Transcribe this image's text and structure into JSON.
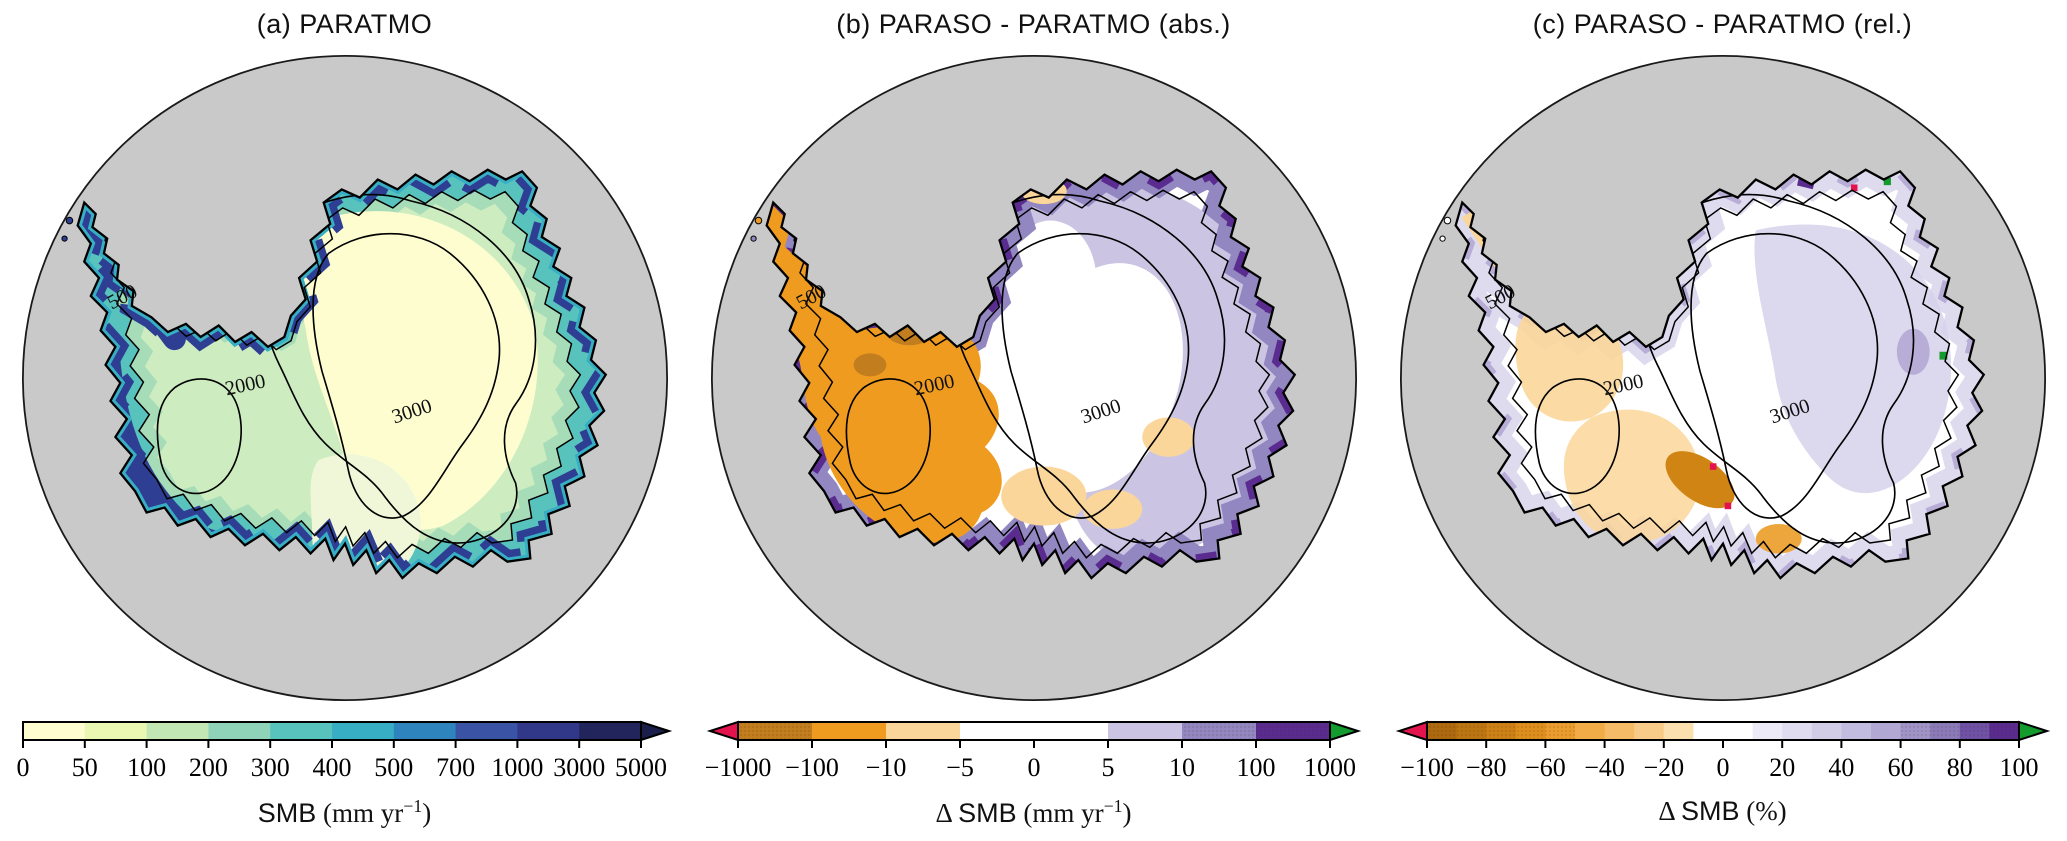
{
  "figure": {
    "background": "#ffffff",
    "ocean_color": "#c9c9c9",
    "coastline_color": "#000000"
  },
  "map": {
    "contour_labels": [
      "500",
      "2000",
      "3000"
    ],
    "contour_levels_m": [
      500,
      2000,
      3000
    ]
  },
  "panels": [
    {
      "id": "a",
      "title": "(a) PARATMO",
      "colorbar": {
        "orientation": "horizontal",
        "segments": [
          "#fdfdd0",
          "#e9f7b2",
          "#c2e7b4",
          "#8fd4b9",
          "#58c3bd",
          "#38aec5",
          "#2e84bc",
          "#3a53a4",
          "#31388a",
          "#22255c"
        ],
        "hatched_segments": [],
        "ticks": [
          "0",
          "50",
          "100",
          "200",
          "300",
          "400",
          "500",
          "700",
          "1000",
          "3000",
          "5000"
        ],
        "left_arrow": null,
        "right_arrow": "#1b1d4a",
        "label_runs": [
          {
            "t": "SMB",
            "f": "sans"
          },
          {
            "t": " (mm yr",
            "f": "serif"
          },
          {
            "t": "−1",
            "f": "serif",
            "sup": true
          },
          {
            "t": ")",
            "f": "serif"
          }
        ]
      }
    },
    {
      "id": "b",
      "title": "(b) PARASO - PARATMO (abs.)",
      "colorbar": {
        "orientation": "horizontal",
        "segments": [
          "#c17d1e",
          "#ef9b20",
          "#fbd69a",
          "#ffffff",
          "#ffffff",
          "#cbc5e3",
          "#9287c0",
          "#5b2c90"
        ],
        "hatched_segments": [
          0,
          6,
          7
        ],
        "ticks": [
          "−1000",
          "−100",
          "−10",
          "−5",
          "0",
          "5",
          "10",
          "100",
          "1000"
        ],
        "left_arrow": "#e3134e",
        "right_arrow": "#149b2d",
        "label_runs": [
          {
            "t": "Δ ",
            "f": "serif"
          },
          {
            "t": "SMB",
            "f": "sans"
          },
          {
            "t": " (mm yr",
            "f": "serif"
          },
          {
            "t": "−1",
            "f": "serif",
            "sup": true
          },
          {
            "t": ")",
            "f": "serif"
          }
        ]
      }
    },
    {
      "id": "c",
      "title": "(c) PARASO - PARATMO (rel.)",
      "colorbar": {
        "orientation": "horizontal",
        "segments": [
          "#ad6910",
          "#bc7513",
          "#cc8016",
          "#dd8e1d",
          "#ea9c2e",
          "#f1ab47",
          "#f5bb66",
          "#f8cc88",
          "#fbdfae",
          "#ffffff",
          "#ffffff",
          "#eceaf6",
          "#dfdcef",
          "#d1cde7",
          "#c2bcde",
          "#b1a8d3",
          "#9f93c7",
          "#8a7ab8",
          "#6f51a6",
          "#5b2c90"
        ],
        "hatched_segments": [
          0,
          1,
          2,
          3,
          4,
          16,
          17,
          18,
          19
        ],
        "ticks": [
          "−100",
          "−80",
          "−60",
          "−40",
          "−20",
          "0",
          "20",
          "40",
          "60",
          "80",
          "100"
        ],
        "left_arrow": "#e3134e",
        "right_arrow": "#149b2d",
        "label_runs": [
          {
            "t": "Δ ",
            "f": "serif"
          },
          {
            "t": "SMB",
            "f": "sans"
          },
          {
            "t": " (%)",
            "f": "serif"
          }
        ]
      }
    }
  ],
  "chart_data": [
    {
      "type": "heatmap",
      "panel": "a",
      "title": "(a) PARATMO",
      "variable": "SMB",
      "units": "mm yr⁻¹",
      "projection": "antarctic polar stereographic",
      "colormap": "discrete yellow-green-blue",
      "levels": [
        0,
        50,
        100,
        200,
        300,
        400,
        500,
        700,
        1000,
        3000,
        5000
      ],
      "colors": [
        "#fdfdd0",
        "#e9f7b2",
        "#c2e7b4",
        "#8fd4b9",
        "#58c3bd",
        "#38aec5",
        "#2e84bc",
        "#3a53a4",
        "#31388a",
        "#22255c"
      ],
      "extend": "max",
      "extend_colors": {
        "max": "#1b1d4a"
      },
      "colorbar_label": "SMB (mm yr⁻¹)",
      "contour_levels_m": [
        500,
        2000,
        3000
      ],
      "ocean_color": "#c9c9c9",
      "pattern": "SMB below 100 mm yr⁻¹ over interior East Antarctic plateau, 100–500 over mid-elevation slopes, above 700–1000 along coastal margins, West Antarctica and Antarctic Peninsula"
    },
    {
      "type": "heatmap",
      "panel": "b",
      "title": "(b) PARASO - PARATMO (abs.)",
      "variable": "Δ SMB",
      "units": "mm yr⁻¹",
      "projection": "antarctic polar stereographic",
      "colormap": "discrete orange-white-purple diverging",
      "levels": [
        -1000,
        -100,
        -10,
        -5,
        0,
        5,
        10,
        100,
        1000
      ],
      "colors": [
        "#c17d1e",
        "#ef9b20",
        "#fbd69a",
        "#ffffff",
        "#ffffff",
        "#cbc5e3",
        "#9287c0",
        "#5b2c90"
      ],
      "extend": "both",
      "extend_colors": {
        "min": "#e3134e",
        "max": "#149b2d"
      },
      "colorbar_label": "Δ SMB (mm yr⁻¹)",
      "contour_levels_m": [
        500,
        2000,
        3000
      ],
      "ocean_color": "#c9c9c9",
      "pattern": "negative differences (orange, −10 to −1000) over West Antarctica and Weddell sector, positive differences (purple, +10 to +1000) along East Antarctic coastal band, near-zero (white) over interior plateau"
    },
    {
      "type": "heatmap",
      "panel": "c",
      "title": "(c) PARASO - PARATMO (rel.)",
      "variable": "Δ SMB",
      "units": "%",
      "projection": "antarctic polar stereographic",
      "colormap": "discrete orange-white-purple diverging",
      "levels": [
        -100,
        -90,
        -80,
        -70,
        -60,
        -50,
        -40,
        -30,
        -20,
        -10,
        0,
        10,
        20,
        30,
        40,
        50,
        60,
        70,
        80,
        90,
        100
      ],
      "colors": [
        "#ad6910",
        "#bc7513",
        "#cc8016",
        "#dd8e1d",
        "#ea9c2e",
        "#f1ab47",
        "#f5bb66",
        "#f8cc88",
        "#fbdfae",
        "#ffffff",
        "#ffffff",
        "#eceaf6",
        "#dfdcef",
        "#d1cde7",
        "#c2bcde",
        "#b1a8d3",
        "#9f93c7",
        "#8a7ab8",
        "#6f51a6",
        "#5b2c90"
      ],
      "extend": "both",
      "extend_colors": {
        "min": "#e3134e",
        "max": "#149b2d"
      },
      "colorbar_label": "Δ SMB (%)",
      "contour_levels_m": [
        500,
        2000,
        3000
      ],
      "ocean_color": "#c9c9c9",
      "pattern": "mostly within ±20% (white/pale); −40 to −80% patches over West Antarctica and near the Transantarctic Mountains; +10 to +40% (pale purple) over East Antarctica with scattered ±100% spots (green/red) at the coast"
    }
  ]
}
